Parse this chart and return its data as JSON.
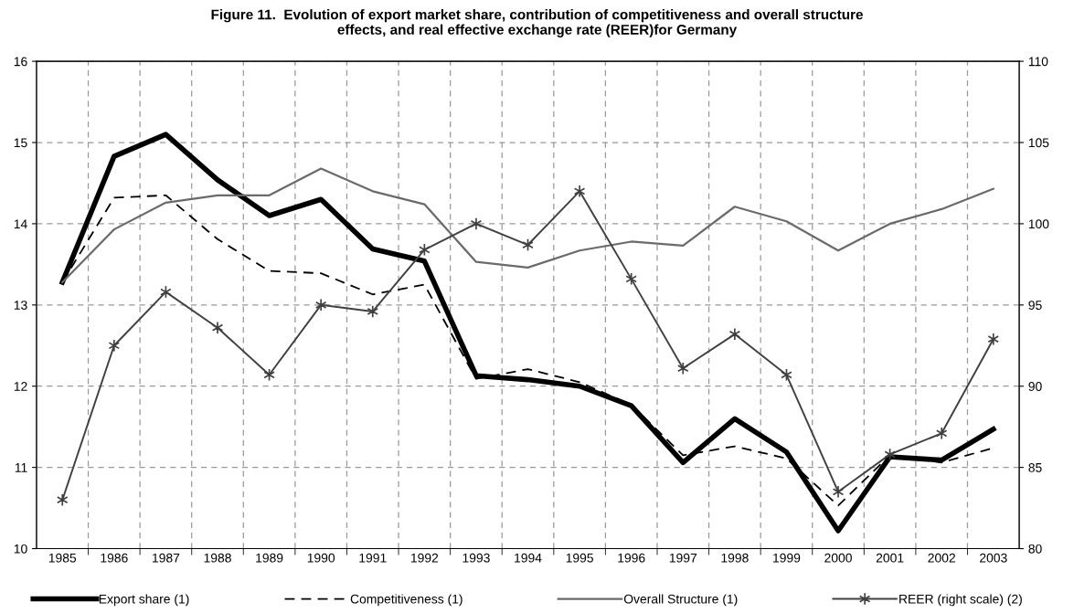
{
  "chart_data": {
    "type": "line",
    "title": "Figure 11.  Evolution of export market share, contribution of competitiveness and overall structure\neffects, and real effective exchange rate (REER)for Germany",
    "categories": [
      "1985",
      "1986",
      "1987",
      "1988",
      "1989",
      "1990",
      "1991",
      "1992",
      "1993",
      "1994",
      "1995",
      "1996",
      "1997",
      "1998",
      "1999",
      "2000",
      "2001",
      "2002",
      "2003"
    ],
    "series": [
      {
        "name": "Export share (1)",
        "color": "#000000",
        "line_style": "solid",
        "marker": "none",
        "values": [
          13.28,
          14.83,
          15.1,
          14.54,
          14.1,
          14.3,
          13.69,
          13.54,
          12.13,
          12.08,
          12.0,
          11.76,
          11.06,
          11.6,
          11.19,
          10.22,
          11.13,
          11.09,
          11.47
        ]
      },
      {
        "name": "Competitiveness (1)",
        "color": "#000000",
        "line_style": "dashed",
        "marker": "none",
        "values": [
          13.28,
          14.32,
          14.35,
          13.81,
          13.42,
          13.39,
          13.13,
          13.25,
          12.09,
          12.21,
          12.05,
          11.77,
          11.15,
          11.26,
          11.11,
          10.53,
          11.15,
          11.06,
          11.24
        ]
      },
      {
        "name": "Overall Structure (1)",
        "color": "#6a6a6a",
        "line_style": "solid",
        "marker": "none",
        "values": [
          13.28,
          13.93,
          14.26,
          14.35,
          14.35,
          14.68,
          14.4,
          14.24,
          13.53,
          13.46,
          13.67,
          13.78,
          13.73,
          14.21,
          14.03,
          13.67,
          14.0,
          14.18,
          14.43
        ]
      },
      {
        "name": "REER (right scale) (2)",
        "color": "#404040",
        "line_style": "solid",
        "marker": "cross",
        "axis": "y2",
        "values": [
          83.0,
          92.5,
          95.8,
          93.6,
          90.7,
          95.0,
          94.6,
          98.4,
          100.0,
          98.7,
          102.0,
          96.6,
          91.1,
          93.2,
          90.7,
          83.5,
          85.8,
          87.1,
          92.9
        ]
      }
    ],
    "ylim": [
      10,
      16
    ],
    "yticks": [
      10,
      11,
      12,
      13,
      14,
      15,
      16
    ],
    "y2lim": [
      80,
      110
    ],
    "y2ticks": [
      80,
      85,
      90,
      95,
      100,
      105,
      110
    ],
    "grid": true,
    "legend": "bottom"
  }
}
